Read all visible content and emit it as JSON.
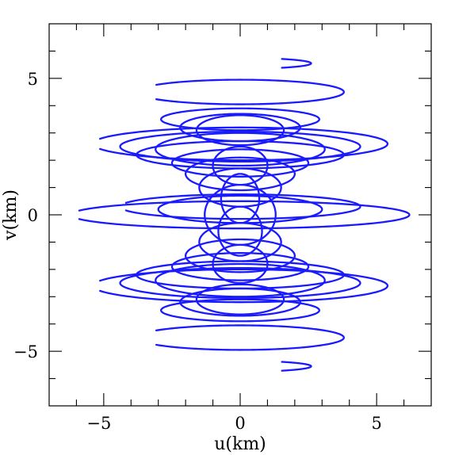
{
  "chart_data": {
    "type": "uv-coverage",
    "xlabel": "u(km)",
    "ylabel": "v(km)",
    "xlim": [
      -7,
      7
    ],
    "ylim": [
      -7,
      7
    ],
    "xticks_labeled": [
      -5,
      0,
      5
    ],
    "yticks_labeled": [
      -5,
      0,
      5
    ],
    "xticks_minor": [
      -6,
      -4,
      -3,
      -2,
      -1,
      1,
      2,
      3,
      4,
      6
    ],
    "yticks_minor": [
      -6,
      -4,
      -3,
      -2,
      -1,
      1,
      2,
      3,
      4,
      6
    ],
    "grid": false,
    "legend": "none",
    "color": "#1a1aff",
    "series": [
      {
        "u_radius": 2.6,
        "v_center": 5.55,
        "v_radius": 0.2,
        "t_start": 0.35,
        "t_end": 0.65
      },
      {
        "u_radius": 3.8,
        "v_center": 4.5,
        "v_radius": 0.45,
        "t_start": 0.1,
        "t_end": 0.9
      },
      {
        "u_radius": 2.9,
        "v_center": 3.5,
        "v_radius": 0.4,
        "t_start": 0,
        "t_end": 1
      },
      {
        "u_radius": 2.2,
        "v_center": 3.2,
        "v_radius": 0.5,
        "t_start": 0,
        "t_end": 1
      },
      {
        "u_radius": 1.6,
        "v_center": 3.1,
        "v_radius": 0.55,
        "t_start": 0,
        "t_end": 1
      },
      {
        "u_radius": 5.4,
        "v_center": 2.6,
        "v_radius": 0.6,
        "t_start": 0.05,
        "t_end": 0.95
      },
      {
        "u_radius": 4.4,
        "v_center": 2.5,
        "v_radius": 0.55,
        "t_start": 0,
        "t_end": 1
      },
      {
        "u_radius": 3.8,
        "v_center": 2.2,
        "v_radius": 0.5,
        "t_start": 0,
        "t_end": 1
      },
      {
        "u_radius": 3.1,
        "v_center": 2.4,
        "v_radius": 0.6,
        "t_start": 0,
        "t_end": 1
      },
      {
        "u_radius": 2.5,
        "v_center": 1.9,
        "v_radius": 0.5,
        "t_start": 0,
        "t_end": 1
      },
      {
        "u_radius": 2.0,
        "v_center": 1.5,
        "v_radius": 0.6,
        "t_start": 0,
        "t_end": 1
      },
      {
        "u_radius": 1.5,
        "v_center": 1.0,
        "v_radius": 0.7,
        "t_start": 0,
        "t_end": 1
      },
      {
        "u_radius": 1.0,
        "v_center": 1.8,
        "v_radius": 0.7,
        "t_start": 0,
        "t_end": 1
      },
      {
        "u_radius": 0.7,
        "v_center": 0.6,
        "v_radius": 0.9,
        "t_start": 0,
        "t_end": 1
      },
      {
        "u_radius": 6.2,
        "v_center": 0.0,
        "v_radius": 0.5,
        "t_start": 0.05,
        "t_end": 0.95
      },
      {
        "u_radius": 4.4,
        "v_center": 0.3,
        "v_radius": 0.45,
        "t_start": 0.05,
        "t_end": 0.95
      },
      {
        "u_radius": 3.0,
        "v_center": 0.2,
        "v_radius": 0.5,
        "t_start": 0,
        "t_end": 1
      },
      {
        "u_radius": 1.3,
        "v_center": 0.0,
        "v_radius": 1.1,
        "t_start": 0,
        "t_end": 1
      },
      {
        "u_radius": 0.8,
        "v_center": -0.6,
        "v_radius": 0.9,
        "t_start": 0,
        "t_end": 1
      },
      {
        "u_radius": 1.0,
        "v_center": -1.8,
        "v_radius": 0.7,
        "t_start": 0,
        "t_end": 1
      },
      {
        "u_radius": 1.5,
        "v_center": -1.0,
        "v_radius": 0.7,
        "t_start": 0,
        "t_end": 1
      },
      {
        "u_radius": 2.0,
        "v_center": -1.5,
        "v_radius": 0.6,
        "t_start": 0,
        "t_end": 1
      },
      {
        "u_radius": 2.5,
        "v_center": -1.9,
        "v_radius": 0.5,
        "t_start": 0,
        "t_end": 1
      },
      {
        "u_radius": 3.1,
        "v_center": -2.4,
        "v_radius": 0.6,
        "t_start": 0,
        "t_end": 1
      },
      {
        "u_radius": 3.8,
        "v_center": -2.2,
        "v_radius": 0.5,
        "t_start": 0,
        "t_end": 1
      },
      {
        "u_radius": 4.4,
        "v_center": -2.5,
        "v_radius": 0.55,
        "t_start": 0,
        "t_end": 1
      },
      {
        "u_radius": 5.4,
        "v_center": -2.6,
        "v_radius": 0.6,
        "t_start": 0.05,
        "t_end": 0.95
      },
      {
        "u_radius": 1.6,
        "v_center": -3.1,
        "v_radius": 0.55,
        "t_start": 0,
        "t_end": 1
      },
      {
        "u_radius": 2.2,
        "v_center": -3.2,
        "v_radius": 0.5,
        "t_start": 0,
        "t_end": 1
      },
      {
        "u_radius": 2.9,
        "v_center": -3.5,
        "v_radius": 0.4,
        "t_start": 0,
        "t_end": 1
      },
      {
        "u_radius": 3.8,
        "v_center": -4.5,
        "v_radius": 0.45,
        "t_start": 0.1,
        "t_end": 0.9
      },
      {
        "u_radius": 2.6,
        "v_center": -5.55,
        "v_radius": 0.2,
        "t_start": 0.35,
        "t_end": 0.65
      }
    ]
  }
}
